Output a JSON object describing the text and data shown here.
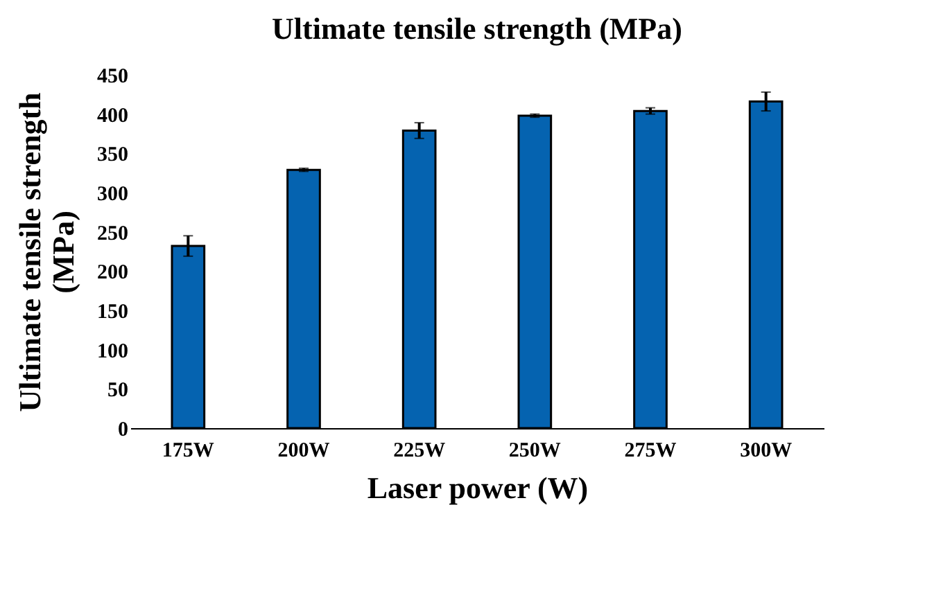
{
  "chart_data": {
    "type": "bar",
    "title": "Ultimate tensile strength (MPa)",
    "xlabel": "Laser power (W)",
    "ylabel": "Ultimate tensile strength (MPa)",
    "categories": [
      "175W",
      "200W",
      "225W",
      "250W",
      "275W",
      "300W"
    ],
    "values": [
      232,
      329,
      379,
      398,
      404,
      416
    ],
    "errors": [
      13,
      2,
      10,
      2,
      4,
      12
    ],
    "color": "#0563b0",
    "ylim": [
      0,
      450
    ],
    "yticks": [
      0,
      50,
      100,
      150,
      200,
      250,
      300,
      350,
      400,
      450
    ],
    "grid": false
  }
}
